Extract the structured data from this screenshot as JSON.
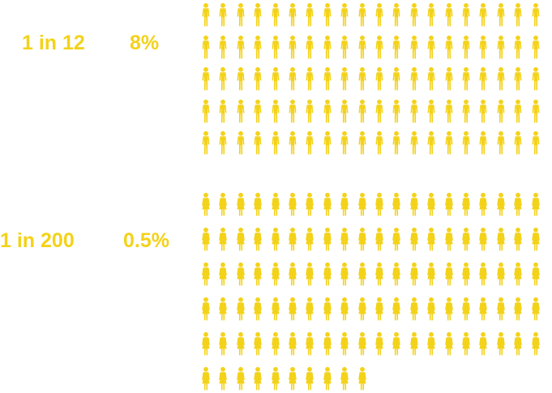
{
  "colors": {
    "accent": "#f3d21a"
  },
  "stats": [
    {
      "ratio": "1 in 12",
      "percent": "8%",
      "icon": "man-icon",
      "count": 100
    },
    {
      "ratio": "1 in 200",
      "percent": "0.5%",
      "icon": "woman-icon",
      "count": 110
    }
  ]
}
